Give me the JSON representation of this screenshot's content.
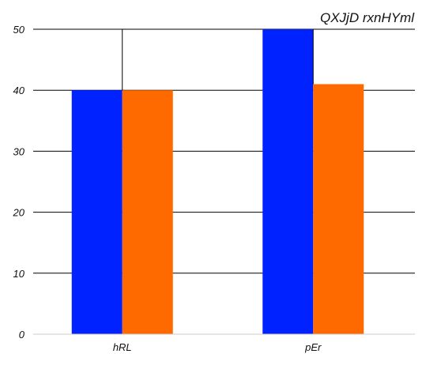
{
  "chart_data": {
    "type": "bar",
    "title": "QXJjD rxnHYml",
    "xlabel": "",
    "ylabel": "",
    "categories": [
      "hRL",
      "pEr"
    ],
    "series": [
      {
        "values": [
          40,
          50
        ],
        "color": "#0022ff"
      },
      {
        "values": [
          40,
          41
        ],
        "color": "#ff6a00"
      }
    ],
    "ylim": [
      0,
      50
    ],
    "yticks": [
      0,
      10,
      20,
      30,
      40,
      50
    ],
    "ytick_labels": [
      "0",
      "10",
      "20",
      "30",
      "40",
      "50"
    ],
    "grid": true,
    "legend": "none"
  }
}
